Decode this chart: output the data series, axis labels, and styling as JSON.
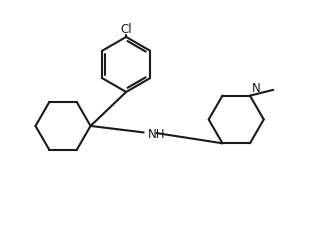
{
  "bg_color": "#ffffff",
  "line_color": "#1a1a1a",
  "line_width": 1.5,
  "text_color": "#1a1a1a",
  "font_size": 8.5,
  "figsize": [
    3.3,
    2.28
  ],
  "dpi": 100,
  "xlim": [
    0,
    10
  ],
  "ylim": [
    0,
    7
  ]
}
